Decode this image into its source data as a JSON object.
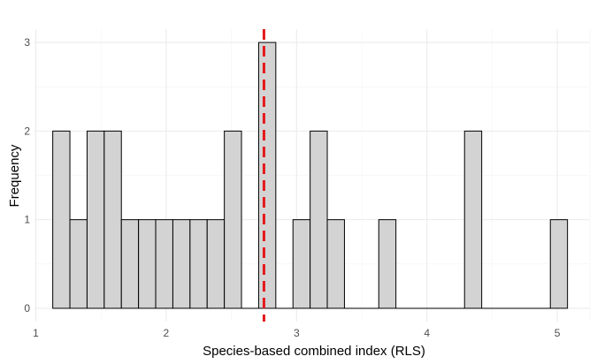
{
  "chart_data": {
    "type": "histogram",
    "xlabel": "Species-based combined index (RLS)",
    "ylabel": "Frequency",
    "xlim": [
      0.99,
      5.25
    ],
    "ylim": [
      -0.15,
      3.15
    ],
    "x_ticks": [
      1,
      2,
      3,
      4,
      5
    ],
    "y_ticks": [
      0,
      1,
      2,
      3
    ],
    "grid": true,
    "bin_width": 0.1316,
    "bin_start": 1.13,
    "counts": [
      2,
      1,
      2,
      2,
      1,
      1,
      1,
      1,
      1,
      1,
      2,
      0,
      3,
      0,
      1,
      2,
      1,
      0,
      0,
      1,
      0,
      0,
      0,
      0,
      2,
      0,
      0,
      0,
      0,
      1
    ],
    "vline": {
      "x": 2.75,
      "color": "#e41a1c",
      "style": "dashed"
    },
    "bar_color": "#d3d3d3",
    "edge_color": "#000000"
  }
}
